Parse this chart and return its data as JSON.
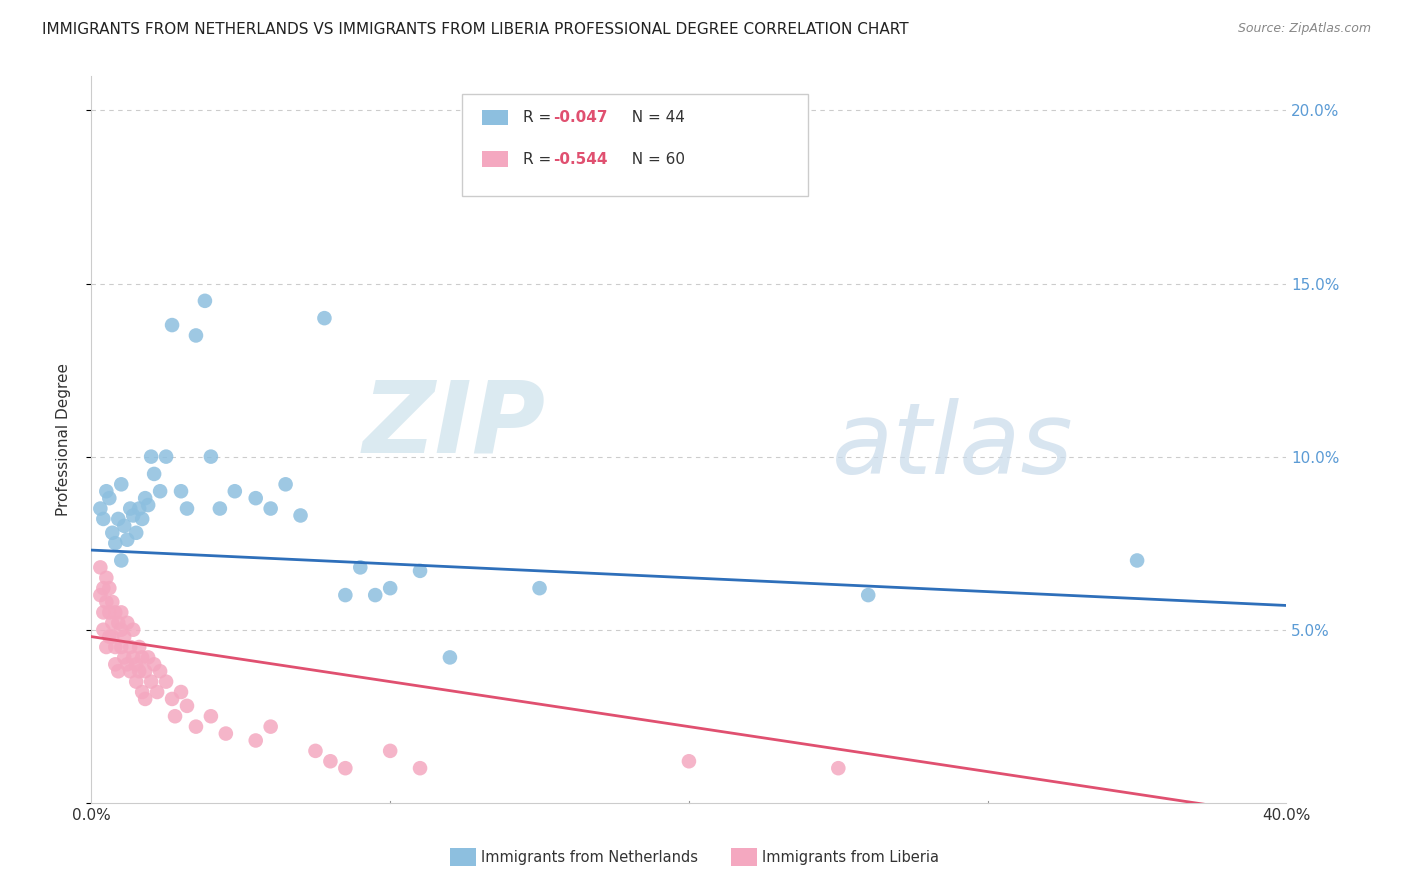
{
  "title": "IMMIGRANTS FROM NETHERLANDS VS IMMIGRANTS FROM LIBERIA PROFESSIONAL DEGREE CORRELATION CHART",
  "source": "Source: ZipAtlas.com",
  "ylabel": "Professional Degree",
  "xlim": [
    0.0,
    0.4
  ],
  "ylim": [
    0.0,
    0.21
  ],
  "ytick_vals": [
    0.0,
    0.05,
    0.1,
    0.15,
    0.2
  ],
  "xtick_vals": [
    0.0,
    0.1,
    0.2,
    0.3,
    0.4
  ],
  "xtick_labels": [
    "0.0%",
    "",
    "",
    "",
    "40.0%"
  ],
  "ytick_labels_right": [
    "",
    "5.0%",
    "10.0%",
    "15.0%",
    "20.0%"
  ],
  "netherlands_color": "#8dbfdf",
  "liberia_color": "#f4a8c0",
  "netherlands_line_color": "#2e6fba",
  "liberia_line_color": "#e05070",
  "legend_nl_r": "R = -0.047",
  "legend_nl_n": "N = 44",
  "legend_lib_r": "R = -0.544",
  "legend_lib_n": "N = 60",
  "legend_r_color": "#e05070",
  "legend_label_netherlands": "Immigrants from Netherlands",
  "legend_label_liberia": "Immigrants from Liberia",
  "watermark_zip": "ZIP",
  "watermark_atlas": "atlas",
  "background_color": "#ffffff",
  "title_fontsize": 11,
  "tick_fontsize": 11,
  "nl_intercept": 0.073,
  "nl_slope": -0.04,
  "lib_intercept": 0.048,
  "lib_slope": -0.13,
  "netherlands_x": [
    0.003,
    0.004,
    0.005,
    0.006,
    0.007,
    0.008,
    0.009,
    0.01,
    0.01,
    0.011,
    0.012,
    0.013,
    0.014,
    0.015,
    0.016,
    0.017,
    0.018,
    0.019,
    0.02,
    0.021,
    0.023,
    0.025,
    0.027,
    0.03,
    0.032,
    0.035,
    0.038,
    0.04,
    0.043,
    0.048,
    0.055,
    0.06,
    0.065,
    0.07,
    0.078,
    0.085,
    0.09,
    0.095,
    0.1,
    0.11,
    0.12,
    0.15,
    0.26,
    0.35
  ],
  "netherlands_y": [
    0.085,
    0.082,
    0.09,
    0.088,
    0.078,
    0.075,
    0.082,
    0.092,
    0.07,
    0.08,
    0.076,
    0.085,
    0.083,
    0.078,
    0.085,
    0.082,
    0.088,
    0.086,
    0.1,
    0.095,
    0.09,
    0.1,
    0.138,
    0.09,
    0.085,
    0.135,
    0.145,
    0.1,
    0.085,
    0.09,
    0.088,
    0.085,
    0.092,
    0.083,
    0.14,
    0.06,
    0.068,
    0.06,
    0.062,
    0.067,
    0.042,
    0.062,
    0.06,
    0.07
  ],
  "liberia_x": [
    0.003,
    0.003,
    0.004,
    0.004,
    0.004,
    0.005,
    0.005,
    0.005,
    0.006,
    0.006,
    0.006,
    0.007,
    0.007,
    0.007,
    0.008,
    0.008,
    0.008,
    0.009,
    0.009,
    0.01,
    0.01,
    0.01,
    0.011,
    0.011,
    0.012,
    0.012,
    0.013,
    0.013,
    0.014,
    0.014,
    0.015,
    0.015,
    0.016,
    0.016,
    0.017,
    0.017,
    0.018,
    0.018,
    0.019,
    0.02,
    0.021,
    0.022,
    0.023,
    0.025,
    0.027,
    0.028,
    0.03,
    0.032,
    0.035,
    0.04,
    0.045,
    0.055,
    0.06,
    0.075,
    0.08,
    0.085,
    0.1,
    0.11,
    0.2,
    0.25
  ],
  "liberia_y": [
    0.06,
    0.068,
    0.055,
    0.062,
    0.05,
    0.065,
    0.058,
    0.045,
    0.055,
    0.048,
    0.062,
    0.052,
    0.048,
    0.058,
    0.04,
    0.055,
    0.045,
    0.052,
    0.038,
    0.05,
    0.045,
    0.055,
    0.042,
    0.048,
    0.04,
    0.052,
    0.045,
    0.038,
    0.042,
    0.05,
    0.04,
    0.035,
    0.045,
    0.038,
    0.042,
    0.032,
    0.038,
    0.03,
    0.042,
    0.035,
    0.04,
    0.032,
    0.038,
    0.035,
    0.03,
    0.025,
    0.032,
    0.028,
    0.022,
    0.025,
    0.02,
    0.018,
    0.022,
    0.015,
    0.012,
    0.01,
    0.015,
    0.01,
    0.012,
    0.01
  ]
}
